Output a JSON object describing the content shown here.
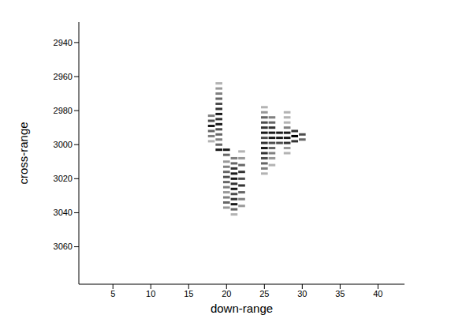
{
  "chart_data": {
    "type": "heatmap",
    "x_label": "down-range",
    "y_label": "cross-range",
    "xlim": [
      0.5,
      43.5
    ],
    "ylim": [
      2928,
      3082
    ],
    "xticks": [
      5,
      10,
      15,
      20,
      25,
      30,
      35,
      40
    ],
    "yticks": [
      2940,
      2960,
      2980,
      3000,
      3020,
      3040,
      3060
    ],
    "cells": [
      {
        "x": 18,
        "y": 2983,
        "value": 0.5
      },
      {
        "x": 18,
        "y": 2986,
        "value": 0.7
      },
      {
        "x": 18,
        "y": 2989,
        "value": 0.9
      },
      {
        "x": 18,
        "y": 2992,
        "value": 0.6
      },
      {
        "x": 18,
        "y": 2995,
        "value": 0.5
      },
      {
        "x": 18,
        "y": 2998,
        "value": 0.3
      },
      {
        "x": 19,
        "y": 2964,
        "value": 0.3
      },
      {
        "x": 19,
        "y": 2967,
        "value": 0.4
      },
      {
        "x": 19,
        "y": 2970,
        "value": 0.5
      },
      {
        "x": 19,
        "y": 2973,
        "value": 0.6
      },
      {
        "x": 19,
        "y": 2976,
        "value": 0.7
      },
      {
        "x": 19,
        "y": 2979,
        "value": 0.8
      },
      {
        "x": 19,
        "y": 2982,
        "value": 0.9
      },
      {
        "x": 19,
        "y": 2985,
        "value": 0.8
      },
      {
        "x": 19,
        "y": 2988,
        "value": 0.9
      },
      {
        "x": 19,
        "y": 2991,
        "value": 0.7
      },
      {
        "x": 19,
        "y": 2994,
        "value": 0.6
      },
      {
        "x": 19,
        "y": 2997,
        "value": 0.5
      },
      {
        "x": 19,
        "y": 3000,
        "value": 0.6
      },
      {
        "x": 19,
        "y": 3003,
        "value": 0.9
      },
      {
        "x": 20,
        "y": 3003,
        "value": 0.9
      },
      {
        "x": 20,
        "y": 3006,
        "value": 0.6
      },
      {
        "x": 20,
        "y": 3010,
        "value": 0.4
      },
      {
        "x": 20,
        "y": 3013,
        "value": 0.5
      },
      {
        "x": 20,
        "y": 3016,
        "value": 0.6
      },
      {
        "x": 20,
        "y": 3019,
        "value": 0.7
      },
      {
        "x": 20,
        "y": 3022,
        "value": 0.6
      },
      {
        "x": 20,
        "y": 3025,
        "value": 0.5
      },
      {
        "x": 20,
        "y": 3028,
        "value": 0.4
      },
      {
        "x": 20,
        "y": 3031,
        "value": 0.5
      },
      {
        "x": 20,
        "y": 3034,
        "value": 0.6
      },
      {
        "x": 20,
        "y": 3037,
        "value": 0.4
      },
      {
        "x": 21,
        "y": 3008,
        "value": 0.5
      },
      {
        "x": 21,
        "y": 3011,
        "value": 0.6
      },
      {
        "x": 21,
        "y": 3014,
        "value": 0.8
      },
      {
        "x": 21,
        "y": 3017,
        "value": 0.9
      },
      {
        "x": 21,
        "y": 3020,
        "value": 0.9
      },
      {
        "x": 21,
        "y": 3023,
        "value": 0.8
      },
      {
        "x": 21,
        "y": 3026,
        "value": 0.9
      },
      {
        "x": 21,
        "y": 3029,
        "value": 0.7
      },
      {
        "x": 21,
        "y": 3032,
        "value": 0.8
      },
      {
        "x": 21,
        "y": 3035,
        "value": 0.9
      },
      {
        "x": 21,
        "y": 3038,
        "value": 0.6
      },
      {
        "x": 21,
        "y": 3041,
        "value": 0.3
      },
      {
        "x": 22,
        "y": 3004,
        "value": 0.3
      },
      {
        "x": 22,
        "y": 3008,
        "value": 0.4
      },
      {
        "x": 22,
        "y": 3012,
        "value": 0.6
      },
      {
        "x": 22,
        "y": 3016,
        "value": 0.8
      },
      {
        "x": 22,
        "y": 3020,
        "value": 0.7
      },
      {
        "x": 22,
        "y": 3024,
        "value": 0.8
      },
      {
        "x": 22,
        "y": 3028,
        "value": 0.6
      },
      {
        "x": 22,
        "y": 3032,
        "value": 0.5
      },
      {
        "x": 22,
        "y": 3036,
        "value": 0.4
      },
      {
        "x": 25,
        "y": 2978,
        "value": 0.3
      },
      {
        "x": 25,
        "y": 2981,
        "value": 0.4
      },
      {
        "x": 25,
        "y": 2984,
        "value": 0.6
      },
      {
        "x": 25,
        "y": 2987,
        "value": 0.7
      },
      {
        "x": 25,
        "y": 2990,
        "value": 0.8
      },
      {
        "x": 25,
        "y": 2993,
        "value": 0.9
      },
      {
        "x": 25,
        "y": 2996,
        "value": 0.7
      },
      {
        "x": 25,
        "y": 2999,
        "value": 0.8
      },
      {
        "x": 25,
        "y": 3002,
        "value": 0.9
      },
      {
        "x": 25,
        "y": 3005,
        "value": 0.8
      },
      {
        "x": 25,
        "y": 3008,
        "value": 0.7
      },
      {
        "x": 25,
        "y": 3011,
        "value": 0.6
      },
      {
        "x": 25,
        "y": 3014,
        "value": 0.5
      },
      {
        "x": 25,
        "y": 3017,
        "value": 0.3
      },
      {
        "x": 26,
        "y": 2984,
        "value": 0.5
      },
      {
        "x": 26,
        "y": 2987,
        "value": 0.6
      },
      {
        "x": 26,
        "y": 2990,
        "value": 0.8
      },
      {
        "x": 26,
        "y": 2993,
        "value": 0.9
      },
      {
        "x": 26,
        "y": 2996,
        "value": 0.9
      },
      {
        "x": 26,
        "y": 2999,
        "value": 0.7
      },
      {
        "x": 26,
        "y": 3002,
        "value": 0.6
      },
      {
        "x": 26,
        "y": 3005,
        "value": 0.5
      },
      {
        "x": 26,
        "y": 3008,
        "value": 0.4
      },
      {
        "x": 26,
        "y": 3012,
        "value": 0.3
      },
      {
        "x": 27,
        "y": 2993,
        "value": 0.9
      },
      {
        "x": 27,
        "y": 2996,
        "value": 0.9
      },
      {
        "x": 27,
        "y": 2999,
        "value": 0.7
      },
      {
        "x": 28,
        "y": 2981,
        "value": 0.3
      },
      {
        "x": 28,
        "y": 2984,
        "value": 0.3
      },
      {
        "x": 28,
        "y": 2987,
        "value": 0.3
      },
      {
        "x": 28,
        "y": 2990,
        "value": 0.5
      },
      {
        "x": 28,
        "y": 2993,
        "value": 0.9
      },
      {
        "x": 28,
        "y": 2996,
        "value": 0.9
      },
      {
        "x": 28,
        "y": 2999,
        "value": 0.8
      },
      {
        "x": 28,
        "y": 3002,
        "value": 0.4
      },
      {
        "x": 28,
        "y": 3005,
        "value": 0.3
      },
      {
        "x": 29,
        "y": 2992,
        "value": 0.8
      },
      {
        "x": 29,
        "y": 2995,
        "value": 1
      },
      {
        "x": 29,
        "y": 2998,
        "value": 0.8
      },
      {
        "x": 30,
        "y": 2994,
        "value": 0.7
      },
      {
        "x": 30,
        "y": 2997,
        "value": 0.6
      }
    ]
  }
}
